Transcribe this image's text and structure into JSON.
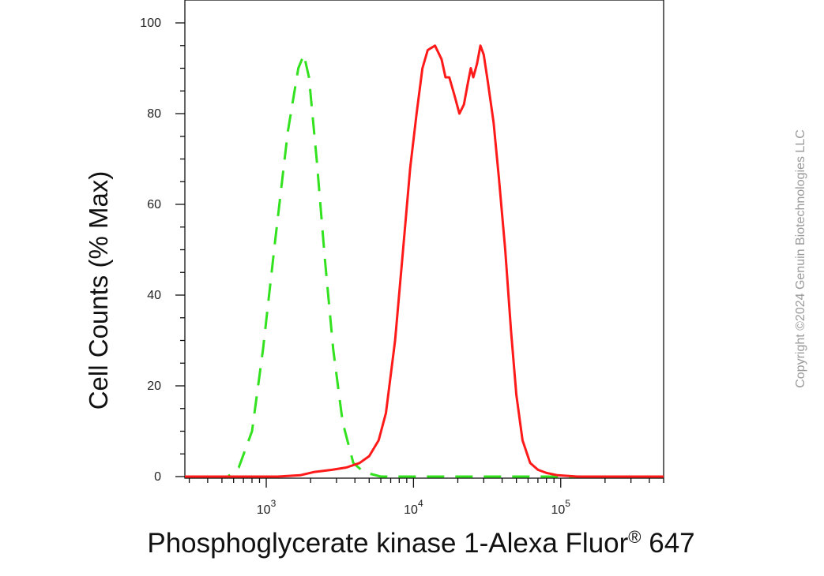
{
  "chart_data": {
    "type": "line",
    "title": "",
    "ylabel": "Cell Counts (% Max)",
    "xlabel_main": "Phosphoglycerate kinase 1-Alexa Fluor",
    "xlabel_sup": "®",
    "xlabel_suffix": " 647",
    "x_scale": "log",
    "xlim": [
      280,
      500000
    ],
    "ylim": [
      0,
      100
    ],
    "y_ticks": [
      0,
      20,
      40,
      60,
      80,
      100
    ],
    "x_ticks": [
      {
        "value": 1000,
        "base": "10",
        "exp": "3"
      },
      {
        "value": 10000,
        "base": "10",
        "exp": "4"
      },
      {
        "value": 100000,
        "base": "10",
        "exp": "5"
      }
    ],
    "grid": false,
    "series": [
      {
        "color": "#32e21f",
        "dash": true,
        "points": [
          [
            280,
            0
          ],
          [
            400,
            0
          ],
          [
            550,
            0
          ],
          [
            650,
            2
          ],
          [
            800,
            10
          ],
          [
            950,
            28
          ],
          [
            1150,
            52
          ],
          [
            1400,
            76
          ],
          [
            1650,
            90
          ],
          [
            1800,
            93
          ],
          [
            1950,
            88
          ],
          [
            2200,
            70
          ],
          [
            2500,
            48
          ],
          [
            2850,
            28
          ],
          [
            3300,
            12
          ],
          [
            3900,
            3
          ],
          [
            4600,
            1
          ],
          [
            6000,
            0
          ],
          [
            15000,
            0
          ],
          [
            60000,
            0
          ],
          [
            500000,
            0
          ]
        ]
      },
      {
        "color": "#ff1a1a",
        "dash": false,
        "points": [
          [
            280,
            0
          ],
          [
            1200,
            0
          ],
          [
            1700,
            0.3
          ],
          [
            2100,
            1
          ],
          [
            2800,
            1.5
          ],
          [
            3500,
            2
          ],
          [
            4300,
            3
          ],
          [
            5000,
            4.5
          ],
          [
            5800,
            8
          ],
          [
            6500,
            14
          ],
          [
            7500,
            30
          ],
          [
            8500,
            50
          ],
          [
            9500,
            68
          ],
          [
            10500,
            80
          ],
          [
            11500,
            90
          ],
          [
            12500,
            94
          ],
          [
            14000,
            95
          ],
          [
            15500,
            92
          ],
          [
            16500,
            88
          ],
          [
            17500,
            88
          ],
          [
            19000,
            84
          ],
          [
            20500,
            80
          ],
          [
            22000,
            82
          ],
          [
            23500,
            87
          ],
          [
            24500,
            90
          ],
          [
            25500,
            88
          ],
          [
            27000,
            91
          ],
          [
            28500,
            95
          ],
          [
            30000,
            93
          ],
          [
            32000,
            87
          ],
          [
            35000,
            78
          ],
          [
            38000,
            66
          ],
          [
            42000,
            50
          ],
          [
            46000,
            32
          ],
          [
            50000,
            18
          ],
          [
            55000,
            8
          ],
          [
            62000,
            3
          ],
          [
            70000,
            1.5
          ],
          [
            80000,
            0.8
          ],
          [
            95000,
            0.3
          ],
          [
            130000,
            0
          ],
          [
            500000,
            0
          ]
        ]
      }
    ]
  },
  "watermark": "Copyright ©2024 Genuin Biotechnologies LLC"
}
